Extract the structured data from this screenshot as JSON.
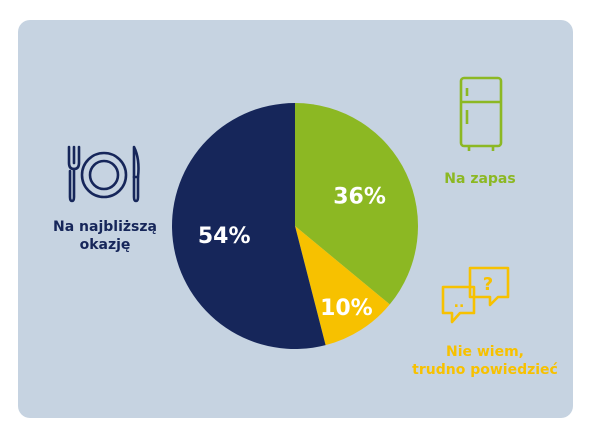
{
  "chart_data": {
    "type": "pie",
    "slices": [
      {
        "label": "Na zapas",
        "value": 36,
        "value_label": "36%",
        "color": "#8cb823"
      },
      {
        "label": "Nie wiem, trudno powiedzieć",
        "value": 10,
        "value_label": "10%",
        "color": "#f7c100"
      },
      {
        "label": "Na najbliższą okazję",
        "value": 54,
        "value_label": "54%",
        "color": "#16265a"
      }
    ],
    "start_angle_deg": 0,
    "direction": "clockwise"
  },
  "legend": {
    "zapas": {
      "line1": "Na zapas",
      "icon": "fridge-icon",
      "color": "#8cb823"
    },
    "niewiem": {
      "line1": "Nie wiem,",
      "line2": "trudno powiedzieć",
      "icon": "chat-question-icon",
      "color": "#f7c100"
    },
    "okazja": {
      "line1": "Na najbliższą",
      "line2": "okazję",
      "icon": "plate-cutlery-icon",
      "color": "#16265a"
    }
  },
  "background_color": "#c6d3e1"
}
